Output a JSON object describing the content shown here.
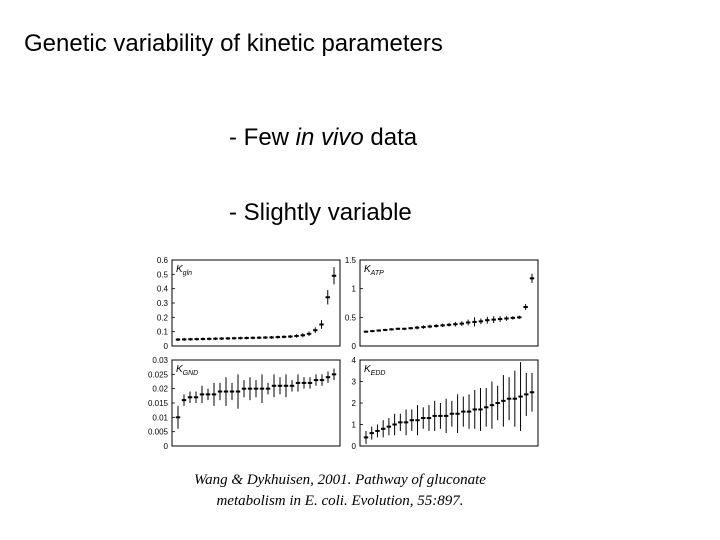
{
  "slide": {
    "title": "Genetic variability of kinetic parameters",
    "bullets": [
      {
        "prefix": "- Few ",
        "em": "in vivo",
        "suffix": " data"
      },
      {
        "text": "- Slightly variable"
      }
    ],
    "citation_lines": [
      "Wang & Dykhuisen, 2001. Pathway of gluconate",
      "metabolism in E. coli. Evolution, 55:897."
    ]
  },
  "chart_data": [
    {
      "type": "scatter",
      "panel": "top-left",
      "label_main": "K",
      "label_sub": "gln",
      "ylim": [
        0,
        0.6
      ],
      "yticks": [
        "0",
        "0.1",
        "0.2",
        "0.3",
        "0.4",
        "0.5",
        "0.6"
      ],
      "values": [
        0.045,
        0.046,
        0.047,
        0.048,
        0.049,
        0.05,
        0.051,
        0.052,
        0.053,
        0.054,
        0.055,
        0.056,
        0.057,
        0.058,
        0.059,
        0.06,
        0.062,
        0.064,
        0.066,
        0.07,
        0.075,
        0.085,
        0.11,
        0.15,
        0.34,
        0.49
      ],
      "errors": [
        0.01,
        0.01,
        0.01,
        0.01,
        0.01,
        0.01,
        0.01,
        0.01,
        0.01,
        0.01,
        0.01,
        0.01,
        0.01,
        0.01,
        0.01,
        0.01,
        0.01,
        0.01,
        0.01,
        0.012,
        0.014,
        0.016,
        0.02,
        0.03,
        0.05,
        0.06
      ]
    },
    {
      "type": "scatter",
      "panel": "top-right",
      "label_main": "K",
      "label_sub": "ATP",
      "ylim": [
        0,
        1.5
      ],
      "yticks": [
        "0",
        "0.5",
        "1",
        "1.5"
      ],
      "values": [
        0.25,
        0.26,
        0.27,
        0.28,
        0.29,
        0.3,
        0.3,
        0.31,
        0.32,
        0.33,
        0.34,
        0.35,
        0.36,
        0.37,
        0.38,
        0.39,
        0.41,
        0.42,
        0.43,
        0.45,
        0.46,
        0.47,
        0.48,
        0.49,
        0.5,
        0.68,
        1.18
      ],
      "errors": [
        0.02,
        0.02,
        0.02,
        0.02,
        0.02,
        0.02,
        0.02,
        0.02,
        0.03,
        0.03,
        0.03,
        0.03,
        0.03,
        0.03,
        0.04,
        0.04,
        0.05,
        0.08,
        0.05,
        0.06,
        0.06,
        0.05,
        0.04,
        0.03,
        0.03,
        0.05,
        0.08
      ]
    },
    {
      "type": "scatter",
      "panel": "bottom-left",
      "label_main": "K",
      "label_sub": "GND",
      "ylim": [
        0,
        0.03
      ],
      "yticks": [
        "0",
        "0.005",
        "0.01",
        "0.015",
        "0.02",
        "0.025",
        "0.03"
      ],
      "values": [
        0.01,
        0.016,
        0.017,
        0.017,
        0.018,
        0.018,
        0.018,
        0.019,
        0.019,
        0.019,
        0.019,
        0.02,
        0.02,
        0.02,
        0.02,
        0.02,
        0.021,
        0.021,
        0.021,
        0.021,
        0.022,
        0.022,
        0.022,
        0.023,
        0.023,
        0.024,
        0.025
      ],
      "errors": [
        0.004,
        0.002,
        0.002,
        0.002,
        0.003,
        0.002,
        0.004,
        0.003,
        0.005,
        0.003,
        0.006,
        0.003,
        0.004,
        0.003,
        0.005,
        0.002,
        0.004,
        0.003,
        0.004,
        0.002,
        0.003,
        0.002,
        0.002,
        0.002,
        0.002,
        0.002,
        0.002
      ]
    },
    {
      "type": "scatter",
      "panel": "bottom-right",
      "label_main": "K",
      "label_sub": "EDD",
      "ylim": [
        0,
        4
      ],
      "yticks": [
        "0",
        "1",
        "2",
        "3",
        "4"
      ],
      "values": [
        0.4,
        0.6,
        0.7,
        0.8,
        0.9,
        1.0,
        1.1,
        1.1,
        1.2,
        1.2,
        1.3,
        1.3,
        1.4,
        1.4,
        1.4,
        1.5,
        1.5,
        1.6,
        1.6,
        1.7,
        1.7,
        1.8,
        1.9,
        2.0,
        2.1,
        2.2,
        2.2,
        2.3,
        2.4,
        2.5
      ],
      "errors": [
        0.3,
        0.3,
        0.3,
        0.4,
        0.4,
        0.5,
        0.4,
        0.6,
        0.5,
        0.7,
        0.5,
        0.6,
        0.7,
        0.6,
        0.8,
        0.6,
        0.9,
        0.7,
        0.8,
        0.9,
        1.0,
        0.9,
        1.1,
        0.8,
        1.2,
        1.0,
        1.3,
        1.6,
        1.0,
        0.9
      ]
    }
  ]
}
